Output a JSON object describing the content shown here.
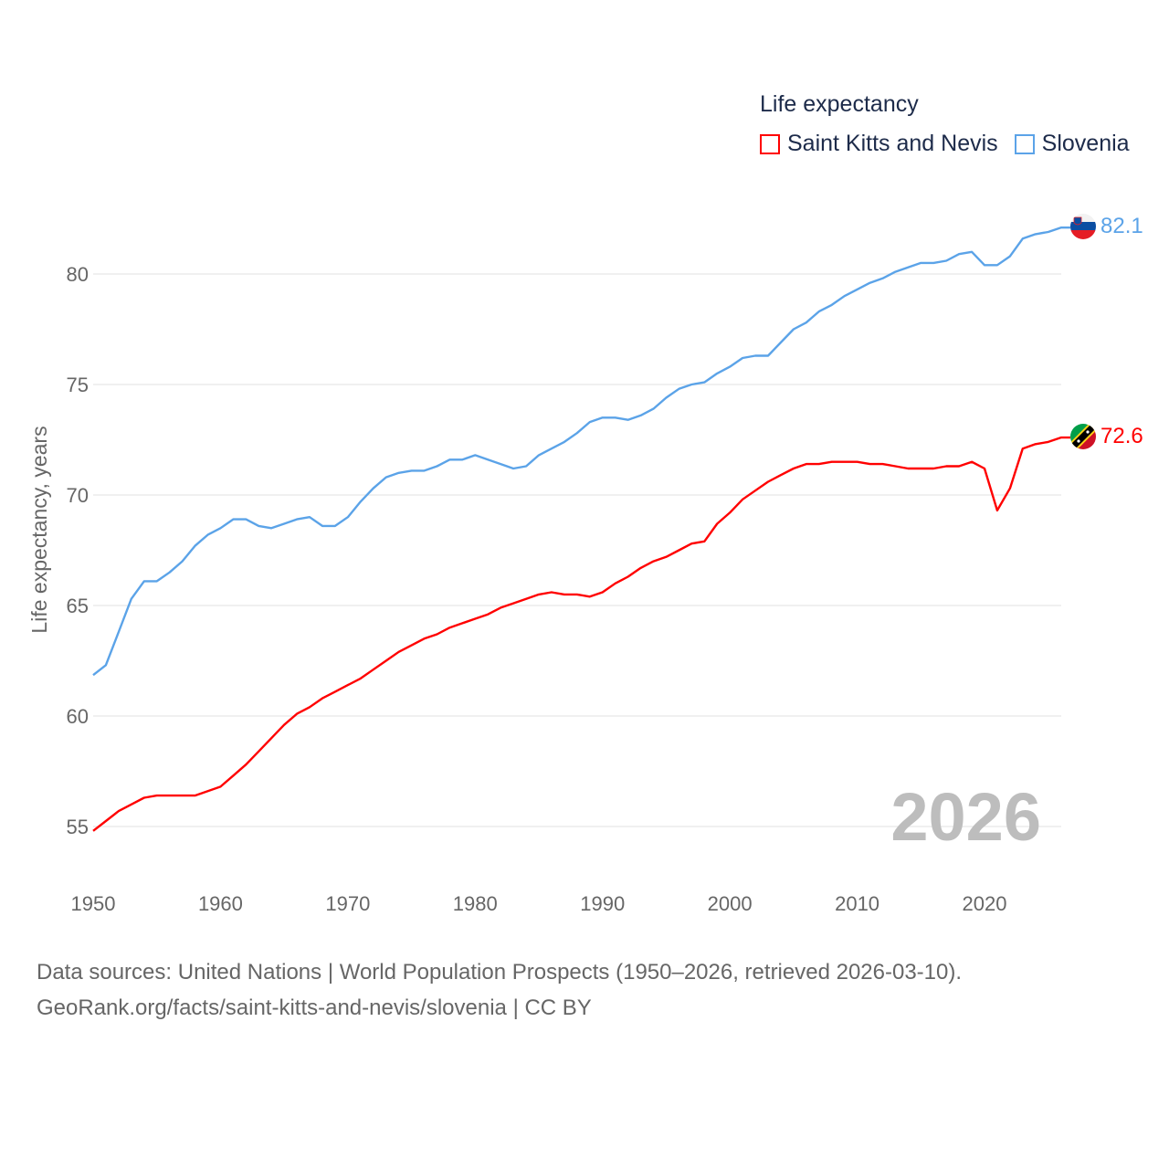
{
  "chart_data": {
    "type": "line",
    "title": "Life expectancy",
    "xlabel": "",
    "ylabel": "Life expectancy, years",
    "xlim": [
      1950,
      2026
    ],
    "ylim": [
      52.5,
      83
    ],
    "x_ticks": [
      "1950",
      "1960",
      "1970",
      "1980",
      "1990",
      "2000",
      "2010",
      "2020"
    ],
    "y_ticks": [
      "55",
      "60",
      "65",
      "70",
      "75",
      "80"
    ],
    "grid": true,
    "legend_position": "top-right",
    "year_label": "2026",
    "x": [
      1950,
      1951,
      1952,
      1953,
      1954,
      1955,
      1956,
      1957,
      1958,
      1959,
      1960,
      1961,
      1962,
      1963,
      1964,
      1965,
      1966,
      1967,
      1968,
      1969,
      1970,
      1971,
      1972,
      1973,
      1974,
      1975,
      1976,
      1977,
      1978,
      1979,
      1980,
      1981,
      1982,
      1983,
      1984,
      1985,
      1986,
      1987,
      1988,
      1989,
      1990,
      1991,
      1992,
      1993,
      1994,
      1995,
      1996,
      1997,
      1998,
      1999,
      2000,
      2001,
      2002,
      2003,
      2004,
      2005,
      2006,
      2007,
      2008,
      2009,
      2010,
      2011,
      2012,
      2013,
      2014,
      2015,
      2016,
      2017,
      2018,
      2019,
      2020,
      2021,
      2022,
      2023,
      2024,
      2025,
      2026
    ],
    "series": [
      {
        "name": "Saint Kitts and Nevis",
        "color": "#ff0000",
        "end_label": "72.6",
        "values": [
          54.8,
          55.25,
          55.7,
          56.0,
          56.3,
          56.4,
          56.4,
          56.4,
          56.4,
          56.6,
          56.8,
          57.3,
          57.8,
          58.4,
          59.0,
          59.6,
          60.1,
          60.4,
          60.8,
          61.1,
          61.4,
          61.7,
          62.1,
          62.5,
          62.9,
          63.2,
          63.5,
          63.7,
          64.0,
          64.2,
          64.4,
          64.6,
          64.9,
          65.1,
          65.3,
          65.5,
          65.6,
          65.5,
          65.5,
          65.4,
          65.6,
          66.0,
          66.3,
          66.7,
          67.0,
          67.2,
          67.5,
          67.8,
          67.9,
          68.7,
          69.2,
          69.8,
          70.2,
          70.6,
          70.9,
          71.2,
          71.4,
          71.4,
          71.5,
          71.5,
          71.5,
          71.4,
          71.4,
          71.3,
          71.2,
          71.2,
          71.2,
          71.3,
          71.3,
          71.5,
          71.2,
          69.3,
          70.3,
          72.1,
          72.3,
          72.4,
          72.6
        ]
      },
      {
        "name": "Slovenia",
        "color": "#5ba3e8",
        "end_label": "82.1",
        "values": [
          61.85,
          62.3,
          63.8,
          65.3,
          66.1,
          66.1,
          66.5,
          67.0,
          67.7,
          68.2,
          68.5,
          68.9,
          68.9,
          68.6,
          68.5,
          68.7,
          68.9,
          69.0,
          68.6,
          68.6,
          69.0,
          69.7,
          70.3,
          70.8,
          71.0,
          71.1,
          71.1,
          71.3,
          71.6,
          71.6,
          71.8,
          71.6,
          71.4,
          71.2,
          71.3,
          71.8,
          72.1,
          72.4,
          72.8,
          73.3,
          73.5,
          73.5,
          73.4,
          73.6,
          73.9,
          74.4,
          74.8,
          75.0,
          75.1,
          75.5,
          75.8,
          76.2,
          76.3,
          76.3,
          76.9,
          77.5,
          77.8,
          78.3,
          78.6,
          79.0,
          79.3,
          79.6,
          79.8,
          80.1,
          80.3,
          80.5,
          80.5,
          80.6,
          80.9,
          81.0,
          80.4,
          80.4,
          80.8,
          81.6,
          81.8,
          81.9,
          82.1
        ]
      }
    ]
  },
  "footer": {
    "line1": "Data sources: United Nations | World Population Prospects (1950–2026, retrieved 2026-03-10).",
    "line2": "GeoRank.org/facts/saint-kitts-and-nevis/slovenia | CC BY"
  }
}
